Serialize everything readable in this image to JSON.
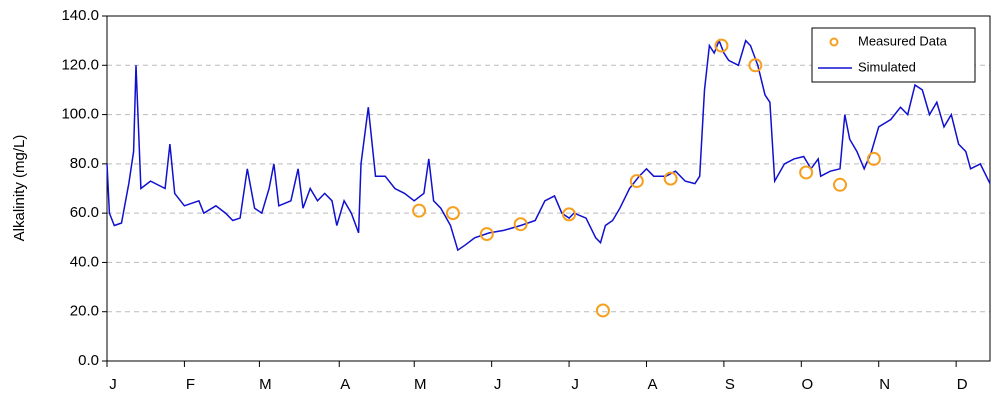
{
  "chart_data": {
    "type": "line",
    "y_label": "Alkalinity (mg/L)",
    "xlim": [
      0,
      365
    ],
    "xticks": [
      {
        "value": 0,
        "label": "J"
      },
      {
        "value": 32,
        "label": "F"
      },
      {
        "value": 63,
        "label": "M"
      },
      {
        "value": 96,
        "label": "A"
      },
      {
        "value": 127,
        "label": "M"
      },
      {
        "value": 159,
        "label": "J"
      },
      {
        "value": 191,
        "label": "J"
      },
      {
        "value": 223,
        "label": "A"
      },
      {
        "value": 255,
        "label": "S"
      },
      {
        "value": 287,
        "label": "O"
      },
      {
        "value": 319,
        "label": "N"
      },
      {
        "value": 351,
        "label": "D"
      }
    ],
    "ylim": [
      0,
      140
    ],
    "yticks": [
      {
        "value": 0,
        "label": "0.0"
      },
      {
        "value": 20,
        "label": "20.0"
      },
      {
        "value": 40,
        "label": "40.0"
      },
      {
        "value": 60,
        "label": "60.0"
      },
      {
        "value": 80,
        "label": "80.0"
      },
      {
        "value": 100,
        "label": "100.0"
      },
      {
        "value": 120,
        "label": "120.0"
      },
      {
        "value": 140,
        "label": "140.0"
      }
    ],
    "grid": true,
    "legend": "upper right",
    "series": [
      {
        "name": "Measured Data",
        "type": "scatter",
        "color": "#f5a021",
        "x": [
          129,
          143,
          157,
          171,
          191,
          205,
          219,
          233,
          254,
          268,
          289,
          303,
          317
        ],
        "values": [
          61,
          60,
          51.5,
          55.5,
          59.5,
          20.5,
          73,
          74,
          128,
          120,
          76.5,
          71.5,
          82
        ]
      },
      {
        "name": "Simulated",
        "type": "line",
        "color": "#1010d0",
        "x": [
          0,
          1,
          3,
          6,
          9,
          11,
          12,
          14,
          18,
          24,
          26,
          28,
          32,
          38,
          40,
          45,
          49,
          52,
          55,
          58,
          61,
          64,
          67,
          69,
          71,
          76,
          79,
          81,
          84,
          87,
          90,
          93,
          95,
          98,
          101,
          104,
          105,
          108,
          111,
          115,
          119,
          123,
          127,
          131,
          133,
          135,
          138,
          142,
          145,
          148,
          152,
          158,
          164,
          171,
          177,
          181,
          185,
          188,
          191,
          193,
          198,
          202,
          204,
          206,
          209,
          212,
          216,
          220,
          223,
          226,
          231,
          235,
          239,
          243,
          245,
          247,
          249,
          251,
          253,
          255,
          257,
          261,
          264,
          266,
          269,
          272,
          274,
          276,
          280,
          284,
          288,
          291,
          294,
          295,
          299,
          303,
          305,
          307,
          310,
          313,
          316,
          319,
          324,
          328,
          331,
          334,
          337,
          340,
          343,
          346,
          349,
          352,
          355,
          357,
          361,
          365
        ],
        "values": [
          80,
          60,
          55,
          56,
          72,
          85,
          120,
          70,
          73,
          70,
          88,
          68,
          63,
          65,
          60,
          63,
          60,
          57,
          58,
          78,
          62,
          60,
          70,
          80,
          63,
          65,
          78,
          62,
          70,
          65,
          68,
          65,
          55,
          65,
          60,
          52,
          80,
          103,
          75,
          75,
          70,
          68,
          65,
          68,
          82,
          65,
          62,
          55,
          45,
          47,
          50,
          52,
          53,
          55,
          57,
          65,
          67,
          60,
          58,
          60,
          58,
          50,
          48,
          55,
          57,
          62,
          70,
          75,
          78,
          75,
          75,
          77,
          73,
          72,
          75,
          110,
          128,
          125,
          130,
          125,
          122,
          120,
          130,
          128,
          120,
          108,
          105,
          73,
          80,
          82,
          83,
          78,
          82,
          75,
          77,
          78,
          100,
          90,
          85,
          78,
          85,
          95,
          98,
          103,
          100,
          112,
          110,
          100,
          105,
          95,
          100,
          88,
          85,
          78,
          80,
          72
        ]
      }
    ]
  }
}
